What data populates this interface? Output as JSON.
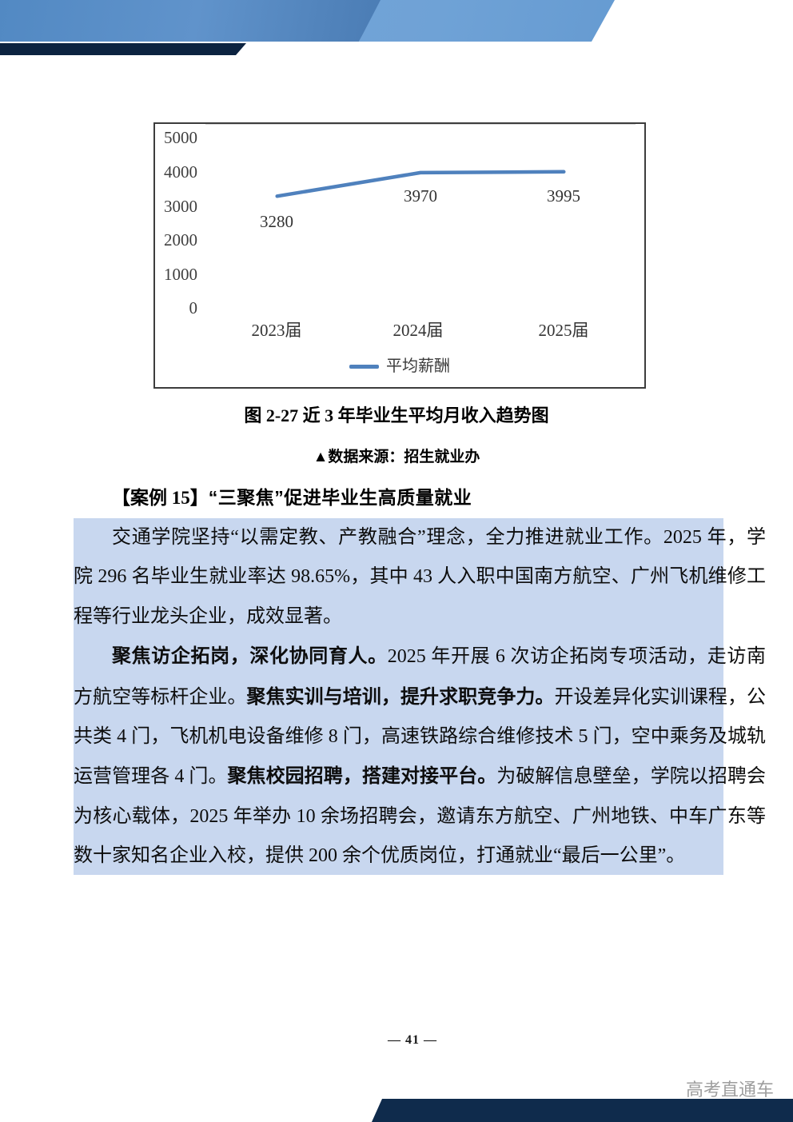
{
  "chart_data": {
    "type": "line",
    "categories": [
      "2023届",
      "2024届",
      "2025届"
    ],
    "series": [
      {
        "name": "平均薪酬",
        "values": [
          3280,
          3970,
          3995
        ]
      }
    ],
    "yticks": [
      5000,
      4000,
      3000,
      2000,
      1000,
      0
    ],
    "ylim": [
      0,
      5000
    ],
    "title": "",
    "xlabel": "",
    "ylabel": "",
    "grid": true,
    "legend_position": "bottom",
    "line_color": "#4f81bd"
  },
  "figure": {
    "caption": "图 2-27 近 3 年毕业生平均月收入趋势图",
    "source": "▲数据来源：招生就业办"
  },
  "case": {
    "label": "【案例 15】",
    "title": "“三聚焦”促进毕业生高质量就业",
    "paragraphs": [
      [
        {
          "t": "交通学院坚持“以需定教、产教融合”理念，全力推进就业工作。2025 年，学院 296 名毕业生就业率达 98.65%，其中 43 人入职中国南方航空、广州飞机维修工程等行业龙头企业，成效显著。",
          "b": false
        }
      ],
      [
        {
          "t": "聚焦访企拓岗，深化协同育人。",
          "b": true
        },
        {
          "t": "2025 年开展 6 次访企拓岗专项活动，走访南方航空等标杆企业。",
          "b": false
        },
        {
          "t": "聚焦实训与培训，提升求职竞争力。",
          "b": true
        },
        {
          "t": "开设差异化实训课程，公共类 4 门，飞机机电设备维修 8 门，高速铁路综合维修技术 5 门，空中乘务及城轨运营管理各 4 门。",
          "b": false
        },
        {
          "t": "聚焦校园招聘，搭建对接平台。",
          "b": true
        },
        {
          "t": "为破解信息壁垒，学院以招聘会为核心载体，2025 年举办 10 余场招聘会，邀请东方航空、广州地铁、中车广东等数十家知名企业入校，提供 200 余个优质岗位，打通就业“最后一公里”。",
          "b": false
        }
      ]
    ]
  },
  "footer": {
    "page_number": "— 41 —",
    "watermark": "高考直通车"
  }
}
